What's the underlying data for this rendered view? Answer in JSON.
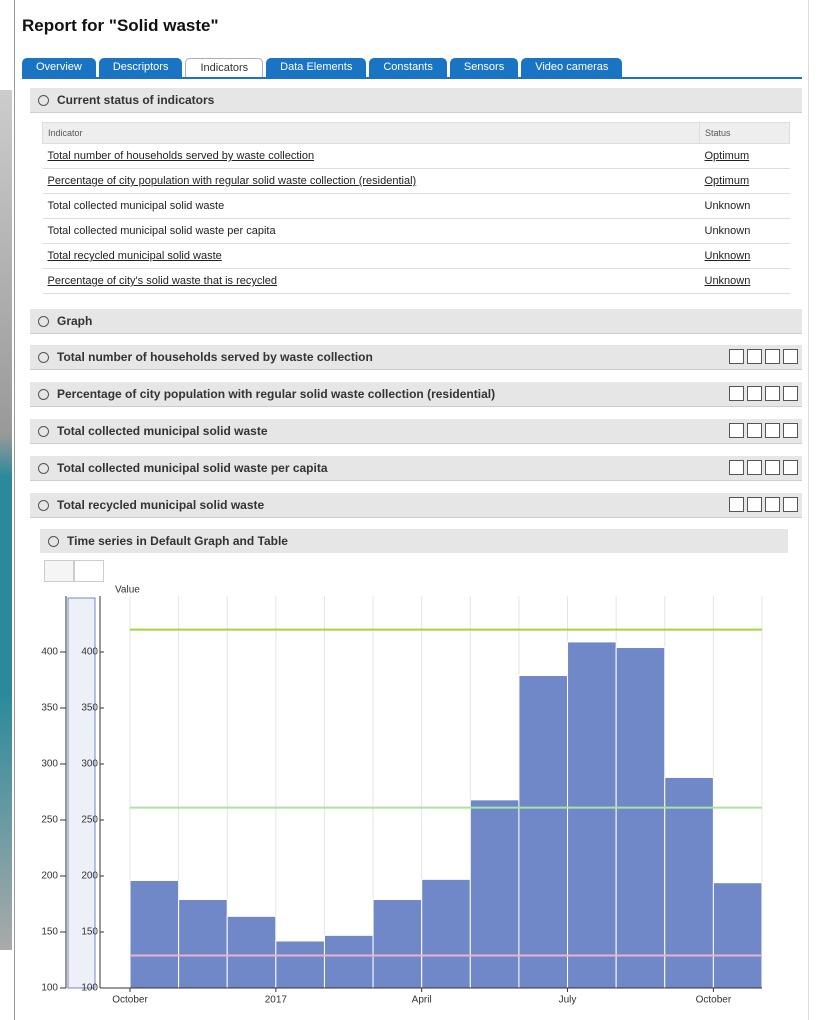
{
  "header": {
    "title": "Report for \"Solid waste\""
  },
  "tabs": {
    "items": [
      "Overview",
      "Descriptors",
      "Indicators",
      "Data Elements",
      "Constants",
      "Sensors",
      "Video cameras"
    ],
    "active_index": 2
  },
  "status_section": {
    "title": "Current status of indicators"
  },
  "table": {
    "columns": [
      "Indicator",
      "Status"
    ],
    "rows": [
      {
        "indicator": "Total number of households served by waste collection",
        "status": "Optimum",
        "link": true
      },
      {
        "indicator": "Percentage of city population with regular solid waste collection (residential)",
        "status": "Optimum",
        "link": true
      },
      {
        "indicator": "Total collected municipal solid waste",
        "status": "Unknown",
        "link": false
      },
      {
        "indicator": "Total collected municipal solid waste per capita",
        "status": "Unknown",
        "link": false
      },
      {
        "indicator": "Total recycled municipal solid waste",
        "status": "Unknown",
        "link": true
      },
      {
        "indicator": "Percentage of city's solid waste that is recycled",
        "status": "Unknown",
        "link": true
      }
    ]
  },
  "graph_section": {
    "title": "Graph"
  },
  "indicator_sections": [
    "Total number of households served by waste collection",
    "Percentage of city population with regular solid waste collection (residential)",
    "Total collected municipal solid waste",
    "Total collected municipal solid waste per capita",
    "Total recycled municipal solid waste"
  ],
  "time_series": {
    "title": "Time series in Default Graph and Table"
  },
  "chart_data": {
    "type": "bar",
    "y_label": "Value",
    "categories": [
      "October",
      null,
      null,
      "2017",
      null,
      null,
      "April",
      null,
      null,
      "July",
      null,
      null,
      "October"
    ],
    "values": [
      196,
      179,
      164,
      142,
      147,
      179,
      197,
      268,
      379,
      409,
      404,
      288,
      194
    ],
    "color": "#7088c8",
    "ylim": [
      100,
      450
    ],
    "yticks": [
      100,
      150,
      200,
      250,
      300,
      350,
      400
    ],
    "grid": true,
    "reference_lines": [
      {
        "value": 420,
        "color": "#a4d53c"
      },
      {
        "value": 261,
        "color": "#a8e6a0"
      },
      {
        "value": 129,
        "color": "#e8b4c8"
      }
    ]
  }
}
